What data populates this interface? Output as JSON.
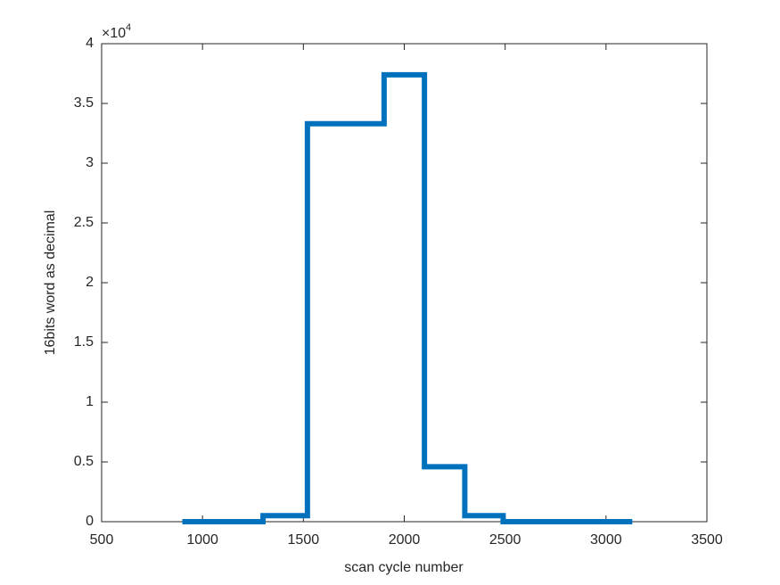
{
  "chart_data": {
    "type": "stairs",
    "x_label": "scan cycle number",
    "y_label": "16bits word as decimal",
    "y_multiplier": "×10",
    "y_multiplier_exponent": "4",
    "x": [
      900,
      1300,
      1520,
      1900,
      2100,
      2300,
      2490,
      3130
    ],
    "series": [
      {
        "color": "#0072bd",
        "values": [
          0,
          0.05,
          3.33,
          3.74,
          0.46,
          0.05,
          0,
          0
        ]
      }
    ],
    "xlim": [
      500,
      3500
    ],
    "xticks": [
      500,
      1000,
      1500,
      2000,
      2500,
      3000,
      3500
    ],
    "ylim": [
      0,
      4
    ],
    "yticks": [
      0,
      0.5,
      1,
      1.5,
      2,
      2.5,
      3,
      3.5,
      4
    ],
    "grid": false
  }
}
